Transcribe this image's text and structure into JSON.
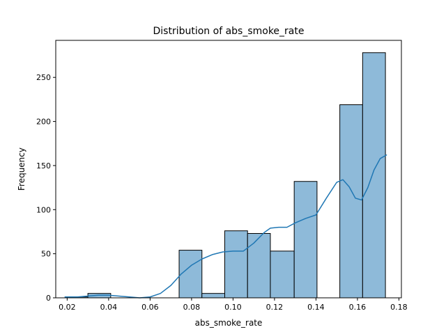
{
  "chart_data": {
    "type": "bar",
    "title": "Distribution of abs_smoke_rate",
    "xlabel": "abs_smoke_rate",
    "ylabel": "Frequency",
    "xlim": [
      0.0145,
      0.1812
    ],
    "ylim": [
      0,
      292
    ],
    "xticks": [
      0.02,
      0.04,
      0.06,
      0.08,
      0.1,
      0.12,
      0.14,
      0.16,
      0.18
    ],
    "xtick_labels": [
      "0.02",
      "0.04",
      "0.06",
      "0.08",
      "0.10",
      "0.12",
      "0.14",
      "0.16",
      "0.18"
    ],
    "yticks": [
      0,
      50,
      100,
      150,
      200,
      250
    ],
    "ytick_labels": [
      "0",
      "50",
      "100",
      "150",
      "200",
      "250"
    ],
    "bins": [
      {
        "x0": 0.019,
        "x1": 0.03,
        "count": 1
      },
      {
        "x0": 0.03,
        "x1": 0.041,
        "count": 5
      },
      {
        "x0": 0.041,
        "x1": 0.052,
        "count": 0
      },
      {
        "x0": 0.052,
        "x1": 0.063,
        "count": 0
      },
      {
        "x0": 0.063,
        "x1": 0.074,
        "count": 0
      },
      {
        "x0": 0.074,
        "x1": 0.085,
        "count": 54
      },
      {
        "x0": 0.085,
        "x1": 0.096,
        "count": 5
      },
      {
        "x0": 0.096,
        "x1": 0.107,
        "count": 76
      },
      {
        "x0": 0.107,
        "x1": 0.118,
        "count": 73
      },
      {
        "x0": 0.118,
        "x1": 0.1295,
        "count": 53
      },
      {
        "x0": 0.1295,
        "x1": 0.1405,
        "count": 132
      },
      {
        "x0": 0.1405,
        "x1": 0.1515,
        "count": 0
      },
      {
        "x0": 0.1515,
        "x1": 0.1625,
        "count": 219
      },
      {
        "x0": 0.1625,
        "x1": 0.1735,
        "count": 278
      }
    ],
    "kde": {
      "x": [
        0.019,
        0.025,
        0.03,
        0.035,
        0.04,
        0.045,
        0.05,
        0.055,
        0.06,
        0.065,
        0.07,
        0.075,
        0.08,
        0.085,
        0.09,
        0.095,
        0.1,
        0.105,
        0.11,
        0.115,
        0.118,
        0.122,
        0.126,
        0.13,
        0.135,
        0.14,
        0.145,
        0.15,
        0.153,
        0.156,
        0.159,
        0.162,
        0.165,
        0.168,
        0.171,
        0.174
      ],
      "y": [
        1,
        1,
        2,
        3,
        3,
        2,
        1,
        0,
        1,
        5,
        14,
        27,
        37,
        44,
        49,
        52,
        53,
        53,
        62,
        74,
        79,
        80,
        80,
        85,
        90,
        94,
        113,
        131,
        134,
        126,
        113,
        111,
        125,
        145,
        158,
        162
      ]
    },
    "bar_color": "#8ebad9",
    "bar_edge": "#000000",
    "line_color": "#1f77b4",
    "grid": false,
    "legend": "none"
  }
}
